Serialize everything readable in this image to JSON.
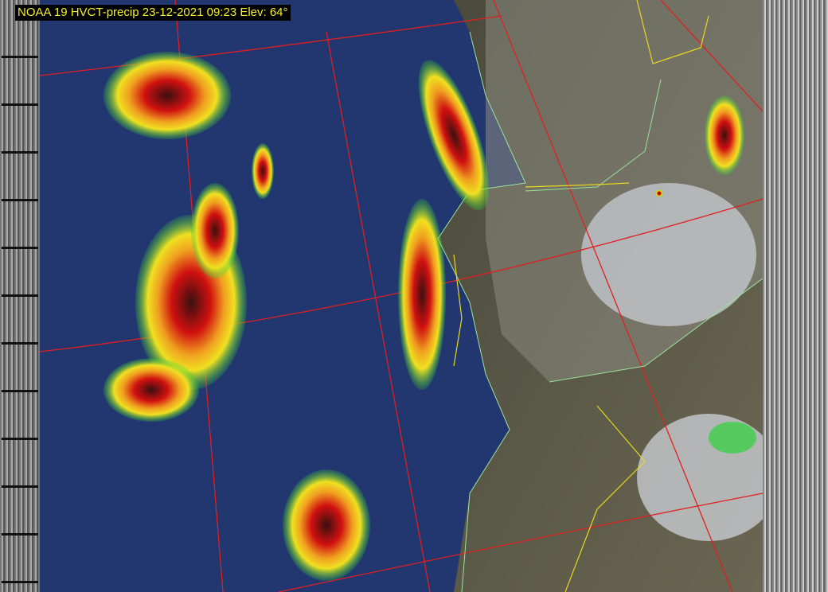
{
  "overlay": {
    "title": "NOAA 19 HVCT-precip 23-12-2021 09:23 Elev: 64°"
  },
  "colors": {
    "ocean": "#22366f",
    "land": "#5f5d4a",
    "cloud": "#c8ccd6",
    "precip_light": "#2fd33a",
    "precip_mid": "#f0e020",
    "precip_heavy": "#d01010",
    "precip_core": "#3a1010",
    "grid": "#e02020",
    "border": "#e8d820",
    "coast": "#9be39b"
  }
}
